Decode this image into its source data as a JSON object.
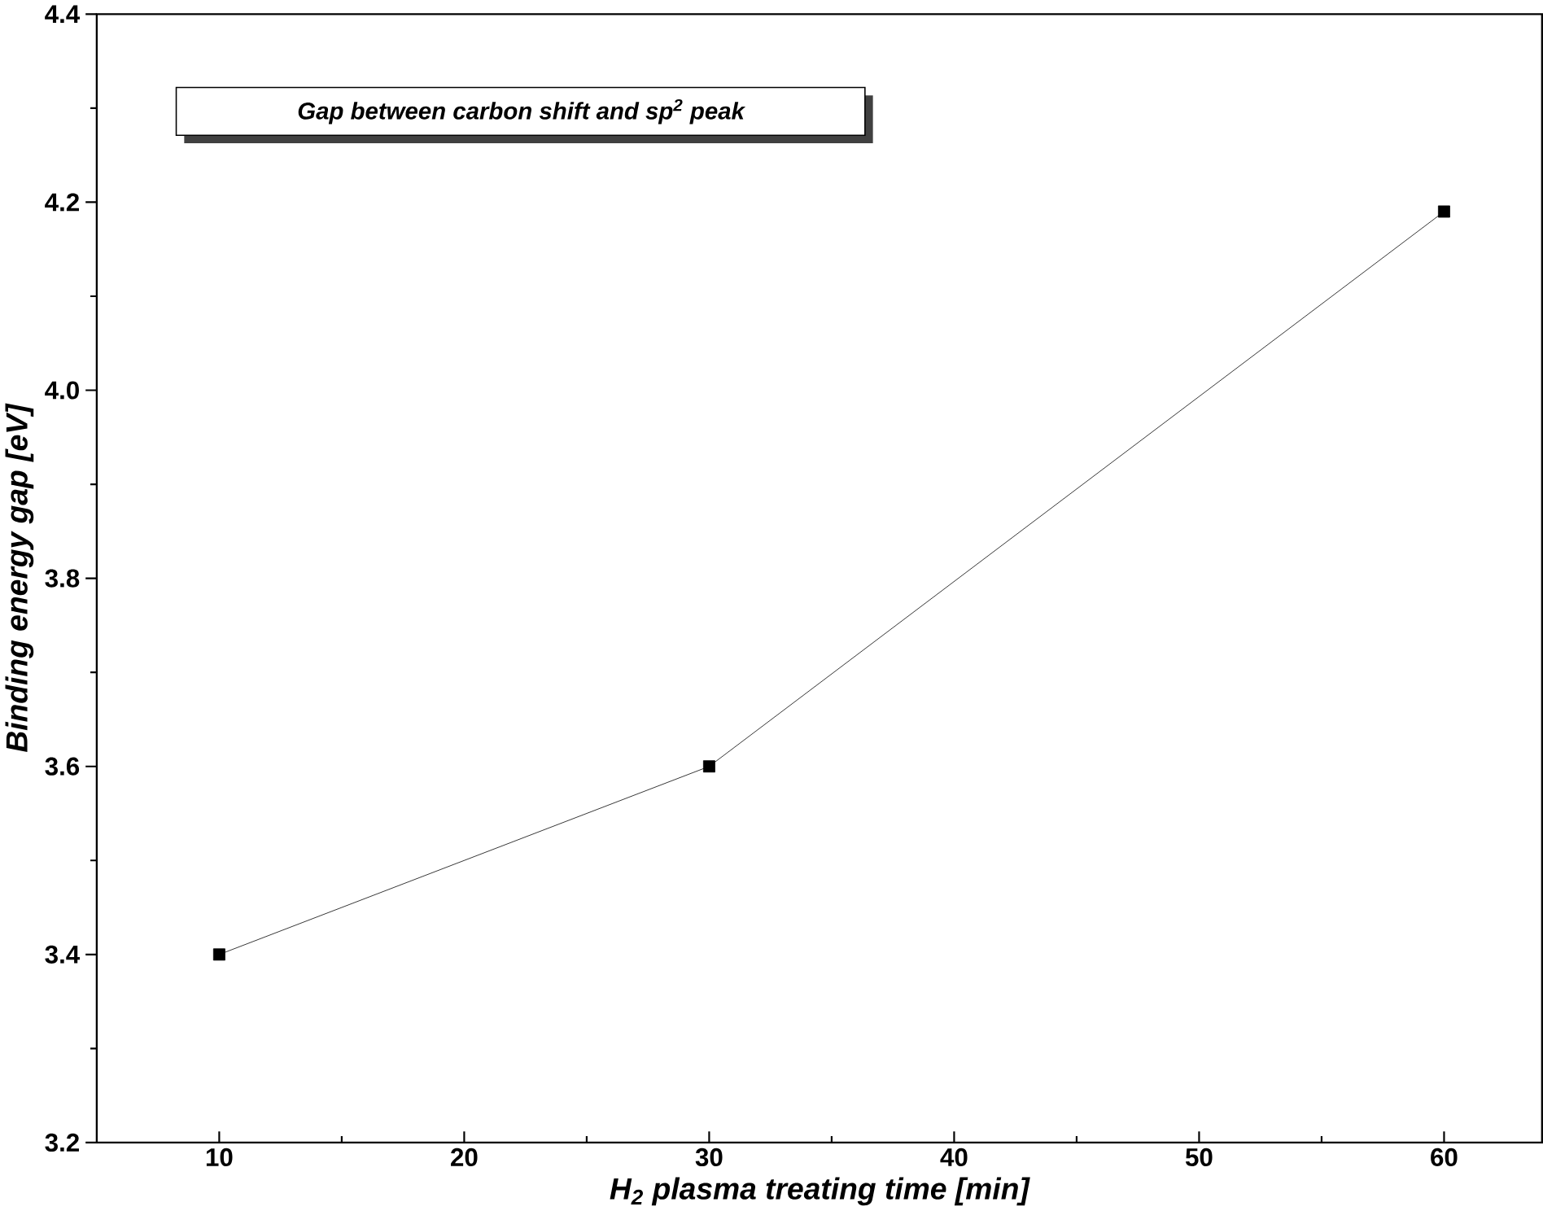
{
  "chart_data": {
    "type": "line",
    "title": "Gap between carbon shift and sp$^{2}$ peak",
    "xlabel": "H$_{2}$ plasma treating time [min]",
    "ylabel": "Binding energy gap [eV]",
    "x": [
      10,
      30,
      60
    ],
    "series": [
      {
        "color": "#000000",
        "values": [
          3.4,
          3.6,
          4.19
        ]
      }
    ],
    "xlim": [
      5,
      64
    ],
    "xticks": [
      10,
      20,
      30,
      40,
      50,
      60
    ],
    "ylim": [
      3.2,
      4.4
    ],
    "yticks": [
      3.2,
      3.4,
      3.6,
      3.8,
      {
        "value": 4,
        "label": "4.0"
      },
      4.2,
      4.4
    ],
    "marker": "square",
    "line_style": "solid"
  }
}
